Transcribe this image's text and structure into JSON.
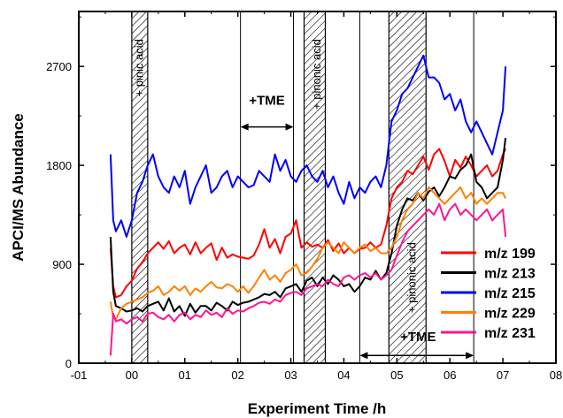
{
  "chart_data": {
    "type": "line",
    "title": "",
    "xlabel": "Experiment Time /h",
    "ylabel": "APCI/MS Abundance",
    "xlim": [
      -1,
      8
    ],
    "ylim": [
      0,
      3200
    ],
    "x_ticks": [
      -1,
      0,
      1,
      2,
      3,
      4,
      5,
      6,
      7,
      8
    ],
    "x_tick_labels": [
      "-01",
      "00",
      "01",
      "02",
      "03",
      "04",
      "05",
      "06",
      "07",
      "08"
    ],
    "y_ticks": [
      0,
      900,
      1800,
      2700
    ],
    "y_tick_labels": [
      "0",
      "900",
      "1800",
      "2700"
    ],
    "grid": false,
    "legend_position": "right",
    "series": [
      {
        "name": "m/z 199",
        "color": "#ff0000",
        "x": [
          -0.4,
          -0.35,
          -0.3,
          -0.2,
          -0.1,
          0.0,
          0.1,
          0.2,
          0.3,
          0.4,
          0.5,
          0.6,
          0.7,
          0.8,
          0.9,
          1.0,
          1.1,
          1.2,
          1.3,
          1.4,
          1.5,
          1.6,
          1.7,
          1.8,
          1.9,
          2.0,
          2.1,
          2.2,
          2.3,
          2.4,
          2.5,
          2.6,
          2.7,
          2.8,
          2.9,
          3.0,
          3.1,
          3.2,
          3.3,
          3.4,
          3.5,
          3.6,
          3.7,
          3.8,
          3.9,
          4.0,
          4.1,
          4.2,
          4.3,
          4.4,
          4.5,
          4.6,
          4.7,
          4.8,
          4.9,
          5.0,
          5.1,
          5.2,
          5.3,
          5.4,
          5.5,
          5.6,
          5.7,
          5.8,
          5.9,
          6.0,
          6.1,
          6.2,
          6.3,
          6.4,
          6.5,
          6.6,
          6.7,
          6.8,
          6.9,
          7.0,
          7.05
        ],
        "y": [
          1050,
          700,
          600,
          620,
          700,
          750,
          860,
          920,
          1000,
          1050,
          1100,
          1040,
          1110,
          1000,
          1050,
          1080,
          990,
          1100,
          1000,
          1050,
          1090,
          940,
          1050,
          960,
          990,
          970,
          960,
          950,
          980,
          1080,
          1220,
          1050,
          1130,
          1000,
          1150,
          1180,
          1300,
          1050,
          1100,
          1060,
          1080,
          1050,
          1120,
          1020,
          1090,
          1000,
          1050,
          1000,
          1040,
          1050,
          1100,
          1050,
          1080,
          1250,
          1500,
          1600,
          1650,
          1750,
          1720,
          1800,
          1880,
          1760,
          1900,
          1950,
          1840,
          1700,
          1850,
          1780,
          1880,
          1800,
          1700,
          1750,
          1800,
          1700,
          1750,
          1900,
          1950
        ]
      },
      {
        "name": "m/z 213",
        "color": "#000000",
        "x": [
          -0.4,
          -0.35,
          -0.3,
          -0.2,
          -0.1,
          0.0,
          0.1,
          0.2,
          0.3,
          0.4,
          0.5,
          0.6,
          0.7,
          0.8,
          0.9,
          1.0,
          1.1,
          1.2,
          1.3,
          1.4,
          1.5,
          1.6,
          1.7,
          1.8,
          1.9,
          2.0,
          2.1,
          2.2,
          2.3,
          2.4,
          2.5,
          2.6,
          2.7,
          2.8,
          2.9,
          3.0,
          3.1,
          3.2,
          3.3,
          3.4,
          3.5,
          3.6,
          3.7,
          3.8,
          3.9,
          4.0,
          4.1,
          4.2,
          4.3,
          4.4,
          4.5,
          4.6,
          4.7,
          4.8,
          4.9,
          5.0,
          5.1,
          5.2,
          5.3,
          5.4,
          5.5,
          5.6,
          5.7,
          5.8,
          5.9,
          6.0,
          6.1,
          6.2,
          6.3,
          6.4,
          6.5,
          6.6,
          6.7,
          6.8,
          6.9,
          7.0,
          7.05
        ],
        "y": [
          1150,
          650,
          520,
          500,
          470,
          480,
          500,
          470,
          520,
          540,
          560,
          480,
          590,
          470,
          520,
          430,
          540,
          460,
          520,
          520,
          480,
          550,
          520,
          480,
          560,
          530,
          550,
          560,
          580,
          600,
          630,
          620,
          650,
          600,
          680,
          700,
          720,
          650,
          750,
          780,
          700,
          780,
          720,
          800,
          760,
          700,
          720,
          650,
          700,
          780,
          760,
          840,
          760,
          820,
          1000,
          1250,
          1400,
          1500,
          1480,
          1550,
          1480,
          1560,
          1600,
          1520,
          1600,
          1700,
          1680,
          1760,
          1800,
          1900,
          1650,
          1600,
          1500,
          1550,
          1600,
          1850,
          2050
        ]
      },
      {
        "name": "m/z 215",
        "color": "#0000ff",
        "x": [
          -0.4,
          -0.35,
          -0.3,
          -0.2,
          -0.1,
          0.0,
          0.1,
          0.2,
          0.3,
          0.4,
          0.5,
          0.6,
          0.7,
          0.8,
          0.9,
          1.0,
          1.1,
          1.2,
          1.3,
          1.4,
          1.5,
          1.6,
          1.7,
          1.8,
          1.9,
          2.0,
          2.1,
          2.2,
          2.3,
          2.4,
          2.5,
          2.6,
          2.7,
          2.8,
          2.9,
          3.0,
          3.1,
          3.2,
          3.3,
          3.4,
          3.5,
          3.6,
          3.7,
          3.8,
          3.9,
          4.0,
          4.1,
          4.2,
          4.3,
          4.4,
          4.5,
          4.6,
          4.7,
          4.8,
          4.9,
          5.0,
          5.1,
          5.2,
          5.3,
          5.4,
          5.5,
          5.6,
          5.7,
          5.8,
          5.9,
          6.0,
          6.1,
          6.2,
          6.3,
          6.4,
          6.5,
          6.6,
          6.7,
          6.8,
          6.9,
          7.0,
          7.05
        ],
        "y": [
          1900,
          1300,
          1200,
          1300,
          1150,
          1300,
          1550,
          1650,
          1800,
          1900,
          1700,
          1600,
          1550,
          1700,
          1600,
          1750,
          1450,
          1600,
          1700,
          1800,
          1550,
          1600,
          1700,
          1750,
          1600,
          1700,
          1650,
          1600,
          1620,
          1750,
          1700,
          1650,
          1900,
          1750,
          1850,
          1700,
          1650,
          1750,
          1800,
          1700,
          1650,
          1750,
          1600,
          1700,
          1550,
          1450,
          1650,
          1500,
          1600,
          1550,
          1650,
          1700,
          1600,
          1800,
          2200,
          2300,
          2450,
          2500,
          2600,
          2700,
          2800,
          2600,
          2600,
          2550,
          2400,
          2450,
          2300,
          2400,
          2200,
          2100,
          2200,
          2100,
          2000,
          1900,
          2100,
          2300,
          2700
        ]
      },
      {
        "name": "m/z 229",
        "color": "#ff8000",
        "x": [
          -0.4,
          -0.35,
          -0.3,
          -0.2,
          -0.1,
          0.0,
          0.1,
          0.2,
          0.3,
          0.4,
          0.5,
          0.6,
          0.7,
          0.8,
          0.9,
          1.0,
          1.1,
          1.2,
          1.3,
          1.4,
          1.5,
          1.6,
          1.7,
          1.8,
          1.9,
          2.0,
          2.1,
          2.2,
          2.3,
          2.4,
          2.5,
          2.6,
          2.7,
          2.8,
          2.9,
          3.0,
          3.1,
          3.2,
          3.3,
          3.4,
          3.5,
          3.6,
          3.7,
          3.8,
          3.9,
          4.0,
          4.1,
          4.2,
          4.3,
          4.4,
          4.5,
          4.6,
          4.7,
          4.8,
          4.9,
          5.0,
          5.1,
          5.2,
          5.3,
          5.4,
          5.5,
          5.6,
          5.7,
          5.8,
          5.9,
          6.0,
          6.1,
          6.2,
          6.3,
          6.4,
          6.5,
          6.6,
          6.7,
          6.8,
          6.9,
          7.0,
          7.05
        ],
        "y": [
          560,
          420,
          400,
          500,
          540,
          560,
          580,
          600,
          640,
          660,
          700,
          620,
          650,
          700,
          660,
          700,
          620,
          680,
          650,
          700,
          740,
          690,
          680,
          720,
          700,
          650,
          700,
          640,
          700,
          780,
          850,
          760,
          800,
          740,
          820,
          850,
          900,
          800,
          820,
          880,
          950,
          1050,
          1100,
          1050,
          1000,
          1100,
          1050,
          1000,
          1050,
          1080,
          1020,
          1050,
          1000,
          1000,
          1050,
          1150,
          1300,
          1400,
          1450,
          1550,
          1500,
          1600,
          1550,
          1500,
          1450,
          1500,
          1550,
          1600,
          1500,
          1550,
          1450,
          1500,
          1450,
          1500,
          1550,
          1550,
          1500
        ]
      },
      {
        "name": "m/z 231",
        "color": "#ff1493",
        "x": [
          -0.4,
          -0.35,
          -0.3,
          -0.2,
          -0.1,
          0.0,
          0.1,
          0.2,
          0.3,
          0.4,
          0.5,
          0.6,
          0.7,
          0.8,
          0.9,
          1.0,
          1.1,
          1.2,
          1.3,
          1.4,
          1.5,
          1.6,
          1.7,
          1.8,
          1.9,
          2.0,
          2.1,
          2.2,
          2.3,
          2.4,
          2.5,
          2.6,
          2.7,
          2.8,
          2.9,
          3.0,
          3.1,
          3.2,
          3.3,
          3.4,
          3.5,
          3.6,
          3.7,
          3.8,
          3.9,
          4.0,
          4.1,
          4.2,
          4.3,
          4.4,
          4.5,
          4.6,
          4.7,
          4.8,
          4.9,
          5.0,
          5.1,
          5.2,
          5.3,
          5.4,
          5.5,
          5.6,
          5.7,
          5.8,
          5.9,
          6.0,
          6.1,
          6.2,
          6.3,
          6.4,
          6.5,
          6.6,
          6.7,
          6.8,
          6.9,
          7.0,
          7.05
        ],
        "y": [
          70,
          450,
          380,
          400,
          360,
          400,
          420,
          380,
          450,
          460,
          420,
          400,
          440,
          380,
          440,
          460,
          400,
          440,
          420,
          480,
          440,
          460,
          420,
          500,
          450,
          480,
          470,
          500,
          520,
          550,
          560,
          540,
          580,
          560,
          620,
          640,
          650,
          620,
          680,
          700,
          720,
          700,
          760,
          720,
          700,
          780,
          800,
          760,
          800,
          820,
          780,
          820,
          760,
          800,
          850,
          980,
          1100,
          1200,
          1250,
          1300,
          1350,
          1400,
          1350,
          1450,
          1300,
          1400,
          1450,
          1350,
          1400,
          1350,
          1300,
          1350,
          1400,
          1300,
          1350,
          1400,
          1150
        ]
      }
    ],
    "shaded_regions": [
      {
        "x": [
          0.0,
          0.3
        ],
        "label": "+ pinic acid"
      },
      {
        "x": [
          3.25,
          3.65
        ],
        "label": "+ pinonic acid"
      },
      {
        "x": [
          4.85,
          5.55
        ],
        "label": "+ pinonic acid"
      }
    ],
    "vertical_lines": [
      2.05,
      3.05,
      4.3,
      6.45
    ],
    "annotations": [
      {
        "text": "+TME",
        "x": 2.55,
        "y": 2350
      },
      {
        "text": "+TME",
        "x": 5.4,
        "y": 200
      }
    ],
    "arrows": [
      {
        "x": [
          2.05,
          3.05
        ],
        "y": 2150
      },
      {
        "x": [
          4.3,
          6.45
        ],
        "y": 70
      }
    ]
  }
}
